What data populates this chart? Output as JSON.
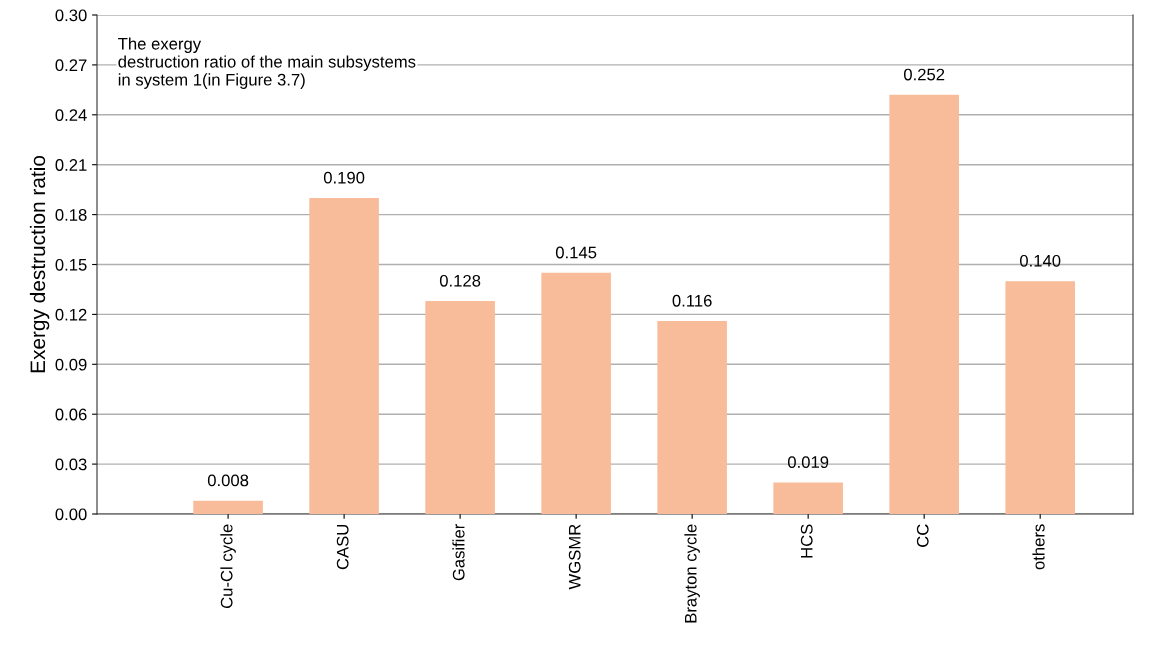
{
  "chart_data": {
    "type": "bar",
    "ylabel": "Exergy destruction ratio",
    "categories": [
      "Cu-Cl cycle",
      "CASU",
      "Gasifier",
      "WGSMR",
      "Brayton cycle",
      "HCS",
      "CC",
      "others"
    ],
    "values": [
      0.008,
      0.19,
      0.128,
      0.145,
      0.116,
      0.019,
      0.252,
      0.14
    ],
    "value_labels": [
      "0.008",
      "0.190",
      "0.128",
      "0.145",
      "0.116",
      "0.019",
      "0.252",
      "0.140"
    ],
    "color": "#f9bc9a",
    "ylim": [
      0,
      0.3
    ],
    "yticks": [
      {
        "value": 0,
        "label": "0.00"
      },
      {
        "value": 0.03,
        "label": "0.03"
      },
      {
        "value": 0.06,
        "label": "0.06"
      },
      {
        "value": 0.09,
        "label": "0.09"
      },
      {
        "value": 0.12,
        "label": "0.12"
      },
      {
        "value": 0.15,
        "label": "0.15"
      },
      {
        "value": 0.18,
        "label": "0.18"
      },
      {
        "value": 0.21,
        "label": "0.21"
      },
      {
        "value": 0.24,
        "label": "0.24"
      },
      {
        "value": 0.27,
        "label": "0.27"
      },
      {
        "value": 0.3,
        "label": "0.30"
      }
    ],
    "grid": "y",
    "annotations": [
      "The exergy\ndestruction ratio of the main subsystems\nin system 1(in Figure 3.7)"
    ]
  }
}
